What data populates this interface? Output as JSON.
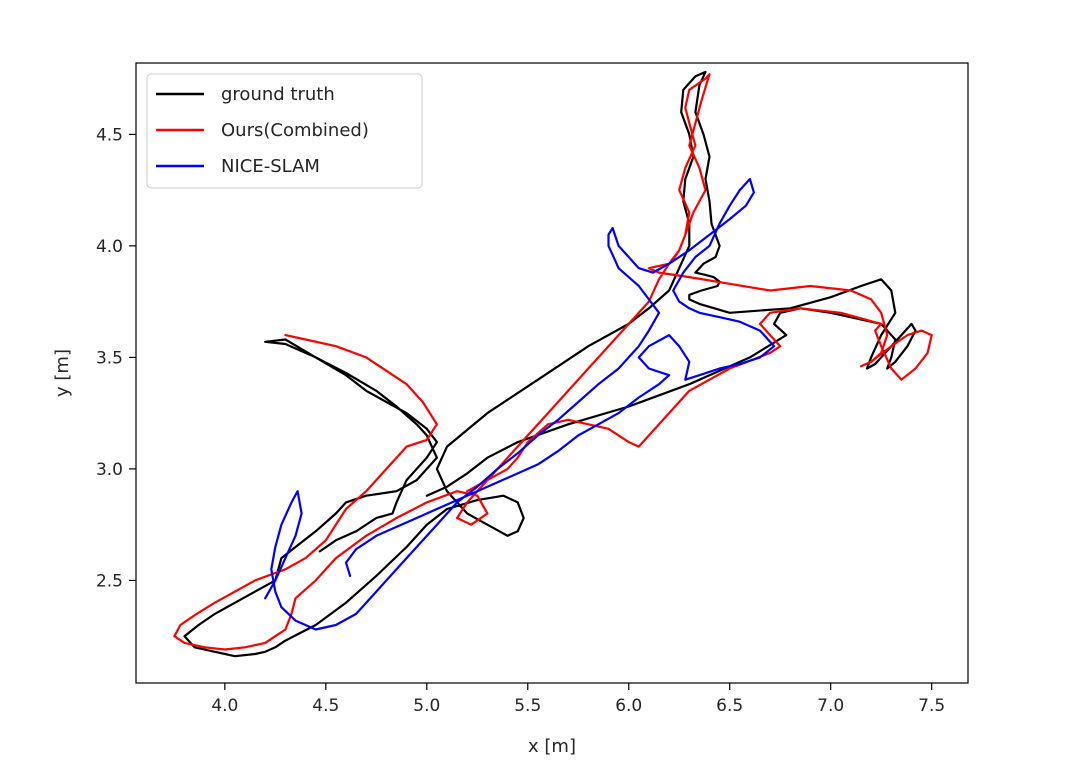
{
  "chart_data": {
    "type": "line",
    "title": "",
    "xlabel": "x [m]",
    "ylabel": "y [m]",
    "xlim": [
      3.56,
      7.68
    ],
    "ylim": [
      2.04,
      4.82
    ],
    "xticks": [
      "4.0",
      "4.5",
      "5.0",
      "5.5",
      "6.0",
      "6.5",
      "7.0",
      "7.5"
    ],
    "yticks": [
      "2.5",
      "3.0",
      "3.5",
      "4.0",
      "4.5"
    ],
    "grid": false,
    "legend_position": "top-left",
    "series": [
      {
        "name": "ground truth",
        "color": "#000000",
        "x": [
          4.47,
          4.55,
          4.65,
          4.75,
          4.83,
          4.85,
          4.9,
          5.0,
          5.05,
          5.0,
          4.9,
          4.8,
          4.7,
          4.6,
          4.45,
          4.3,
          4.2,
          4.3,
          4.45,
          4.6,
          4.75,
          4.85,
          4.95,
          5.0,
          5.05,
          4.95,
          4.85,
          4.7,
          4.6,
          4.55,
          4.45,
          4.35,
          4.28,
          4.25,
          4.15,
          4.05,
          3.95,
          3.87,
          3.8,
          3.85,
          3.95,
          4.05,
          4.15,
          4.2,
          4.25,
          4.3,
          4.45,
          4.6,
          4.75,
          4.9,
          5.0,
          5.1,
          5.25,
          5.38,
          5.45,
          5.48,
          5.45,
          5.4,
          5.3,
          5.2,
          5.1,
          5.05,
          5.1,
          5.3,
          5.55,
          5.8,
          6.0,
          6.1,
          6.2,
          6.25,
          6.3,
          6.3,
          6.27,
          6.28,
          6.32,
          6.3,
          6.26,
          6.27,
          6.33,
          6.38,
          6.35,
          6.33,
          6.37,
          6.4,
          6.38,
          6.4,
          6.41,
          6.45,
          6.43,
          6.37,
          6.35,
          6.33,
          6.38,
          6.42,
          6.45,
          6.44,
          6.36,
          6.3,
          6.3,
          6.35,
          6.5,
          6.8,
          7.0,
          7.15,
          7.25,
          7.3,
          7.32,
          7.25,
          7.2,
          7.18,
          7.22,
          7.3,
          7.35,
          7.4,
          7.42,
          7.38,
          7.32,
          7.28,
          7.3,
          7.32,
          7.25,
          7.0,
          6.85,
          6.75,
          6.72,
          6.78,
          6.6,
          6.3,
          6.0,
          5.7,
          5.45,
          5.3,
          5.2,
          5.1,
          5.0
        ],
        "y": [
          2.63,
          2.68,
          2.72,
          2.78,
          2.8,
          2.85,
          2.95,
          3.05,
          3.12,
          3.18,
          3.25,
          3.3,
          3.35,
          3.42,
          3.5,
          3.56,
          3.57,
          3.58,
          3.5,
          3.43,
          3.35,
          3.28,
          3.2,
          3.15,
          3.05,
          2.95,
          2.9,
          2.88,
          2.85,
          2.8,
          2.72,
          2.65,
          2.6,
          2.5,
          2.45,
          2.4,
          2.35,
          2.3,
          2.25,
          2.2,
          2.18,
          2.16,
          2.17,
          2.18,
          2.2,
          2.23,
          2.3,
          2.4,
          2.52,
          2.65,
          2.75,
          2.82,
          2.86,
          2.88,
          2.85,
          2.78,
          2.72,
          2.7,
          2.75,
          2.8,
          2.9,
          3.0,
          3.1,
          3.25,
          3.4,
          3.55,
          3.65,
          3.72,
          3.8,
          3.9,
          4.0,
          4.1,
          4.2,
          4.3,
          4.4,
          4.5,
          4.6,
          4.7,
          4.76,
          4.78,
          4.72,
          4.6,
          4.5,
          4.4,
          4.3,
          4.2,
          4.1,
          4.0,
          3.95,
          3.92,
          3.9,
          3.88,
          3.87,
          3.86,
          3.84,
          3.82,
          3.8,
          3.78,
          3.76,
          3.74,
          3.7,
          3.72,
          3.77,
          3.82,
          3.85,
          3.8,
          3.7,
          3.6,
          3.5,
          3.45,
          3.47,
          3.55,
          3.6,
          3.65,
          3.62,
          3.55,
          3.48,
          3.45,
          3.5,
          3.58,
          3.65,
          3.7,
          3.72,
          3.7,
          3.65,
          3.6,
          3.5,
          3.38,
          3.28,
          3.2,
          3.12,
          3.05,
          2.98,
          2.92,
          2.88
        ]
      },
      {
        "name": "Ours(Combined)",
        "color": "#ff0000",
        "x": [
          4.3,
          4.4,
          4.55,
          4.7,
          4.8,
          4.9,
          4.98,
          5.05,
          5.0,
          4.9,
          4.85,
          4.8,
          4.7,
          4.6,
          4.55,
          4.5,
          4.4,
          4.3,
          4.15,
          4.05,
          3.95,
          3.86,
          3.78,
          3.75,
          3.8,
          3.9,
          4.0,
          4.1,
          4.2,
          4.25,
          4.3,
          4.33,
          4.35,
          4.45,
          4.55,
          4.7,
          4.85,
          5.0,
          5.15,
          5.25,
          5.3,
          5.22,
          5.15,
          5.2,
          5.3,
          5.4,
          5.5,
          5.6,
          5.7,
          5.8,
          5.9,
          6.0,
          6.1,
          6.15,
          6.2,
          6.25,
          6.28,
          6.3,
          6.25,
          6.28,
          6.33,
          6.3,
          6.28,
          6.3,
          6.38,
          6.4,
          6.36,
          6.33,
          6.3,
          6.35,
          6.38,
          6.32,
          6.28,
          6.25,
          6.22,
          6.2,
          6.15,
          6.1,
          6.15,
          6.3,
          6.5,
          6.7,
          6.9,
          7.1,
          7.2,
          7.25,
          7.28,
          7.25,
          7.2,
          7.15,
          7.2,
          7.3,
          7.38,
          7.45,
          7.5,
          7.48,
          7.42,
          7.35,
          7.3,
          7.25,
          7.22,
          7.25,
          7.05,
          6.85,
          6.7,
          6.65,
          6.7,
          6.75,
          6.7,
          6.5,
          6.3,
          6.15,
          6.05,
          6.0,
          5.9,
          5.8,
          5.7,
          5.6,
          5.5,
          5.45,
          5.4,
          5.3,
          5.2
        ],
        "y": [
          3.6,
          3.58,
          3.55,
          3.5,
          3.44,
          3.38,
          3.3,
          3.2,
          3.13,
          3.1,
          3.05,
          3.0,
          2.9,
          2.82,
          2.75,
          2.68,
          2.6,
          2.55,
          2.5,
          2.45,
          2.4,
          2.35,
          2.3,
          2.25,
          2.22,
          2.2,
          2.19,
          2.2,
          2.22,
          2.25,
          2.28,
          2.35,
          2.42,
          2.5,
          2.6,
          2.7,
          2.78,
          2.85,
          2.9,
          2.88,
          2.8,
          2.75,
          2.78,
          2.85,
          2.95,
          3.05,
          3.15,
          3.25,
          3.35,
          3.45,
          3.55,
          3.65,
          3.75,
          3.85,
          3.92,
          3.98,
          4.05,
          4.15,
          4.25,
          4.35,
          4.45,
          4.55,
          4.62,
          4.7,
          4.75,
          4.77,
          4.65,
          4.55,
          4.45,
          4.35,
          4.25,
          4.15,
          4.05,
          3.98,
          3.94,
          3.92,
          3.91,
          3.9,
          3.88,
          3.86,
          3.83,
          3.8,
          3.82,
          3.8,
          3.76,
          3.7,
          3.6,
          3.52,
          3.48,
          3.46,
          3.48,
          3.55,
          3.6,
          3.62,
          3.6,
          3.52,
          3.45,
          3.4,
          3.45,
          3.55,
          3.62,
          3.65,
          3.7,
          3.72,
          3.7,
          3.65,
          3.6,
          3.55,
          3.52,
          3.45,
          3.35,
          3.2,
          3.1,
          3.12,
          3.18,
          3.2,
          3.22,
          3.2,
          3.12,
          3.05,
          3.0,
          2.95,
          2.9
        ]
      },
      {
        "name": "NICE-SLAM",
        "color": "#0000ff",
        "x": [
          4.2,
          4.25,
          4.3,
          4.35,
          4.38,
          4.36,
          4.33,
          4.28,
          4.25,
          4.23,
          4.25,
          4.28,
          4.35,
          4.45,
          4.55,
          4.65,
          4.75,
          4.85,
          4.95,
          5.05,
          5.15,
          5.25,
          5.35,
          5.45,
          5.55,
          5.65,
          5.75,
          5.85,
          5.95,
          6.05,
          6.1,
          6.15,
          6.1,
          6.05,
          6.0,
          5.95,
          5.92,
          5.9,
          5.9,
          5.92,
          5.95,
          6.0,
          6.05,
          6.12,
          6.2,
          6.3,
          6.4,
          6.5,
          6.58,
          6.62,
          6.6,
          6.55,
          6.5,
          6.45,
          6.4,
          6.33,
          6.27,
          6.22,
          6.25,
          6.3,
          6.35,
          6.45,
          6.55,
          6.65,
          6.72,
          6.65,
          6.55,
          6.45,
          6.35,
          6.28,
          6.3,
          6.25,
          6.2,
          6.1,
          6.05,
          6.1,
          6.2,
          6.15,
          6.05,
          5.95,
          5.85,
          5.75,
          5.65,
          5.55,
          5.45,
          5.35,
          5.25,
          5.15,
          5.05,
          4.95,
          4.85,
          4.75,
          4.65,
          4.6,
          4.62
        ],
        "y": [
          2.42,
          2.5,
          2.6,
          2.7,
          2.8,
          2.9,
          2.85,
          2.75,
          2.65,
          2.55,
          2.45,
          2.38,
          2.32,
          2.28,
          2.3,
          2.35,
          2.45,
          2.55,
          2.65,
          2.75,
          2.85,
          2.92,
          3.0,
          3.07,
          3.15,
          3.22,
          3.3,
          3.38,
          3.45,
          3.55,
          3.62,
          3.7,
          3.76,
          3.82,
          3.86,
          3.9,
          3.96,
          4.0,
          4.05,
          4.08,
          4.0,
          3.95,
          3.9,
          3.88,
          3.92,
          3.98,
          4.05,
          4.12,
          4.18,
          4.24,
          4.3,
          4.25,
          4.18,
          4.1,
          4.0,
          3.95,
          3.88,
          3.8,
          3.75,
          3.72,
          3.7,
          3.68,
          3.66,
          3.62,
          3.55,
          3.5,
          3.47,
          3.45,
          3.42,
          3.4,
          3.48,
          3.55,
          3.6,
          3.55,
          3.5,
          3.45,
          3.42,
          3.38,
          3.32,
          3.25,
          3.2,
          3.15,
          3.08,
          3.02,
          2.98,
          2.94,
          2.9,
          2.86,
          2.82,
          2.78,
          2.74,
          2.7,
          2.64,
          2.58,
          2.52
        ]
      }
    ]
  }
}
